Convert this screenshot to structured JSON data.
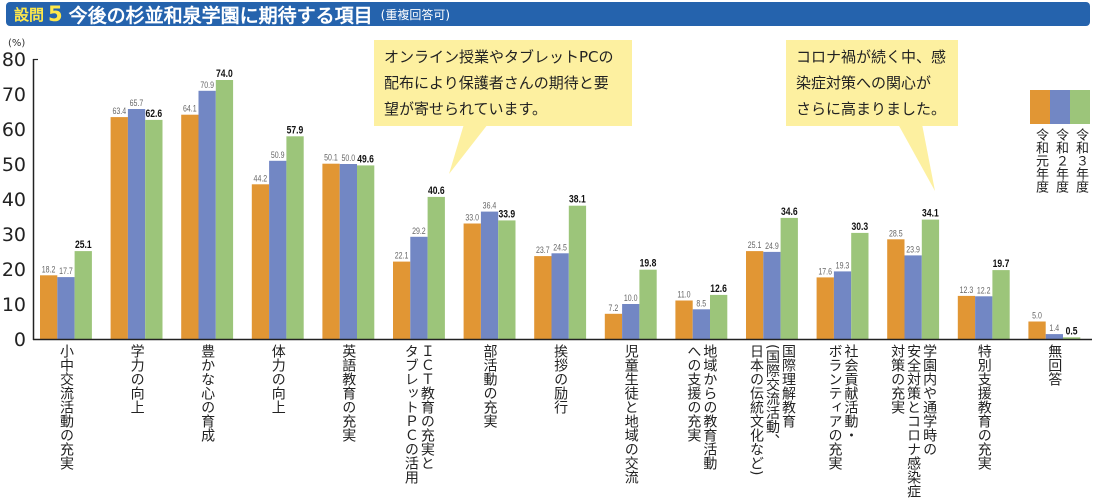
{
  "header": {
    "question_label": "設問",
    "question_number": "5",
    "title": "今後の杉並和泉学園に期待する項目",
    "subtitle": "(重複回答可)"
  },
  "callouts": [
    {
      "text": "オンライン授業やタブレットPCの\n配布により保護者さんの期待と要\n望が寄せられています。"
    },
    {
      "text": "コロナ禍が続く中、感\n染症対策への関心が\nさらに高まりました。"
    }
  ],
  "chart_data": {
    "type": "bar",
    "title": "今後の杉並和泉学園に期待する項目",
    "ylabel": "(%)",
    "ylim": [
      0,
      80
    ],
    "yticks": [
      "0",
      "10",
      "20",
      "30",
      "40",
      "50",
      "60",
      "70",
      "80"
    ],
    "ytick_values": [
      0,
      10,
      20,
      30,
      40,
      50,
      60,
      70,
      80
    ],
    "grid": false,
    "legend_position": "right",
    "categories": [
      "小中交流活動の充実",
      "学力の向上",
      "豊かな心の育成",
      "体力の向上",
      "英語教育の充実",
      "ＩＣＴ教育の充実と\nタブレットＰＣの活用",
      "部活動の充実",
      "挨拶の励行",
      "児童生徒と地域の交流",
      "地域からの教育活動\nへの支援の充実",
      "国際理解教育\n(国際交流活動、\n日本の伝統文化など)",
      "社会貢献活動・\nボランティアの充実",
      "学園内や通学時の\n安全対策とコロナ感染症\n対策の充実",
      "特別支援教育の充実",
      "無回答"
    ],
    "series": [
      {
        "name": "令和元年度",
        "color": "#e19634",
        "values": [
          18.2,
          63.4,
          64.1,
          44.2,
          50.1,
          22.1,
          33.0,
          23.7,
          7.2,
          11.0,
          25.1,
          17.6,
          28.5,
          12.3,
          5.0
        ],
        "labels": [
          "18.2",
          "63.4",
          "64.1",
          "44.2",
          "50.1",
          "22.1",
          "33.0",
          "23.7",
          "7.2",
          "11.0",
          "25.1",
          "17.6",
          "28.5",
          "12.3",
          "5.0"
        ]
      },
      {
        "name": "令和２年度",
        "color": "#7287c4",
        "values": [
          17.7,
          65.7,
          70.9,
          50.9,
          50.0,
          29.2,
          36.4,
          24.5,
          10.0,
          8.5,
          24.9,
          19.3,
          23.9,
          12.2,
          1.4
        ],
        "labels": [
          "17.7",
          "65.7",
          "70.9",
          "50.9",
          "50.0",
          "29.2",
          "36.4",
          "24.5",
          "10.0",
          "8.5",
          "24.9",
          "19.3",
          "23.9",
          "12.2",
          "1.4"
        ]
      },
      {
        "name": "令和３年度",
        "color": "#9cc57a",
        "values": [
          25.1,
          62.6,
          74.0,
          57.9,
          49.6,
          40.6,
          33.9,
          38.1,
          19.8,
          12.6,
          34.6,
          30.3,
          34.1,
          19.7,
          0.5
        ],
        "labels": [
          "25.1",
          "62.6",
          "74.0",
          "57.9",
          "49.6",
          "40.6",
          "33.9",
          "38.1",
          "19.8",
          "12.6",
          "34.6",
          "30.3",
          "34.1",
          "19.7",
          "0.5"
        ]
      }
    ]
  }
}
